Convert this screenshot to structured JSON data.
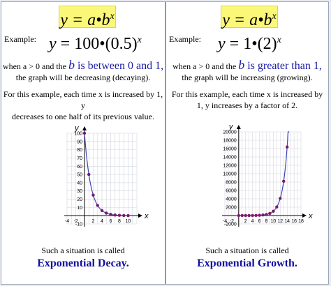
{
  "left": {
    "formula": {
      "y": "y",
      "eq": " = ",
      "a": "a",
      "dot": "•",
      "b": "b",
      "exp": "x"
    },
    "example_label": "Example:",
    "example_eq": {
      "y": "y",
      "eq": " = ",
      "base_a": "100",
      "dot": "•",
      "base_b": "(0.5)",
      "exp": "x"
    },
    "condition_pre": "when a > 0 and the ",
    "condition_b": "b",
    "condition_phrase": " is between 0 and 1,",
    "condition_line2": "the graph will be decreasing (decaying).",
    "explain_line1": "For this example, each time x is increased by 1, y",
    "explain_line2": "decreases to one half of its previous value.",
    "called": "Such a situation is called",
    "kind": "Exponential Decay."
  },
  "right": {
    "formula": {
      "y": "y",
      "eq": " = ",
      "a": "a",
      "dot": "•",
      "b": "b",
      "exp": "x"
    },
    "example_label": "Example:",
    "example_eq": {
      "y": "y",
      "eq": " = ",
      "base_a": "1",
      "dot": "•",
      "base_b": "(2)",
      "exp": "x"
    },
    "condition_pre": "when a > 0 and the ",
    "condition_b": "b",
    "condition_phrase": " is greater than 1,",
    "condition_line2": "the graph will be increasing (growing).",
    "explain_line1": "For this example, each time x is increased by",
    "explain_line2": "1, y increases by a factor of 2.",
    "called": "Such a situation is called",
    "kind": "Exponential Growth."
  },
  "chart_data": [
    {
      "type": "scatter",
      "title": "",
      "xlabel": "x",
      "ylabel": "y",
      "xlim": [
        -4,
        12
      ],
      "ylim": [
        -10,
        100
      ],
      "xticks": [
        "-4",
        "-2",
        "2",
        "4",
        "6",
        "8",
        "10"
      ],
      "yticks": [
        "100",
        "90",
        "80",
        "70",
        "60",
        "50",
        "40",
        "30",
        "20",
        "10",
        "-10"
      ],
      "curve": "y = 100*(0.5)^x",
      "curve_color": "#3c46b4",
      "point_color": "#7a1a6a",
      "points": [
        [
          0,
          100
        ],
        [
          1,
          50
        ],
        [
          2,
          25
        ],
        [
          3,
          12.5
        ],
        [
          4,
          6.25
        ],
        [
          5,
          3.125
        ],
        [
          6,
          1.5625
        ],
        [
          7,
          0.78
        ],
        [
          8,
          0.39
        ],
        [
          9,
          0.2
        ],
        [
          10,
          0.1
        ]
      ]
    },
    {
      "type": "scatter",
      "title": "",
      "xlabel": "x",
      "ylabel": "y",
      "xlim": [
        -4,
        18
      ],
      "ylim": [
        -2000,
        20000
      ],
      "xticks": [
        "-4",
        "-2",
        "2",
        "4",
        "6",
        "8",
        "10",
        "12",
        "14",
        "16",
        "18"
      ],
      "yticks": [
        "20000",
        "18000",
        "16000",
        "14000",
        "12000",
        "10000",
        "8000",
        "6000",
        "4000",
        "2000",
        "-2000"
      ],
      "curve": "y = 2^x",
      "curve_color": "#3c46b4",
      "point_color": "#7a1a6a",
      "points": [
        [
          0,
          1
        ],
        [
          1,
          2
        ],
        [
          2,
          4
        ],
        [
          3,
          8
        ],
        [
          4,
          16
        ],
        [
          5,
          32
        ],
        [
          6,
          64
        ],
        [
          7,
          128
        ],
        [
          8,
          256
        ],
        [
          9,
          512
        ],
        [
          10,
          1024
        ],
        [
          11,
          2048
        ],
        [
          12,
          4096
        ],
        [
          13,
          8192
        ],
        [
          14,
          16384
        ]
      ]
    }
  ]
}
